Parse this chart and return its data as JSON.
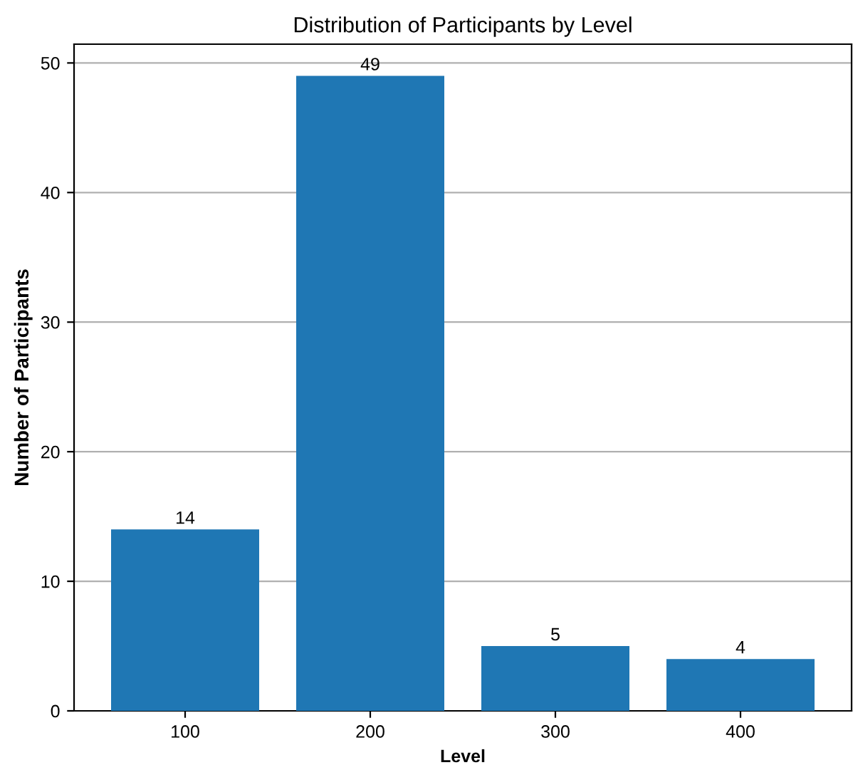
{
  "chart_data": {
    "type": "bar",
    "title": "Distribution of Participants by Level",
    "xlabel": "Level",
    "ylabel": "Number of Participants",
    "categories": [
      "100",
      "200",
      "300",
      "400"
    ],
    "values": [
      14,
      49,
      5,
      4
    ],
    "color": "#1f77b4",
    "ylim": [
      0,
      51.45
    ],
    "yticks": [
      0,
      10,
      20,
      30,
      40,
      50
    ],
    "grid": "y",
    "data_labels": true
  }
}
